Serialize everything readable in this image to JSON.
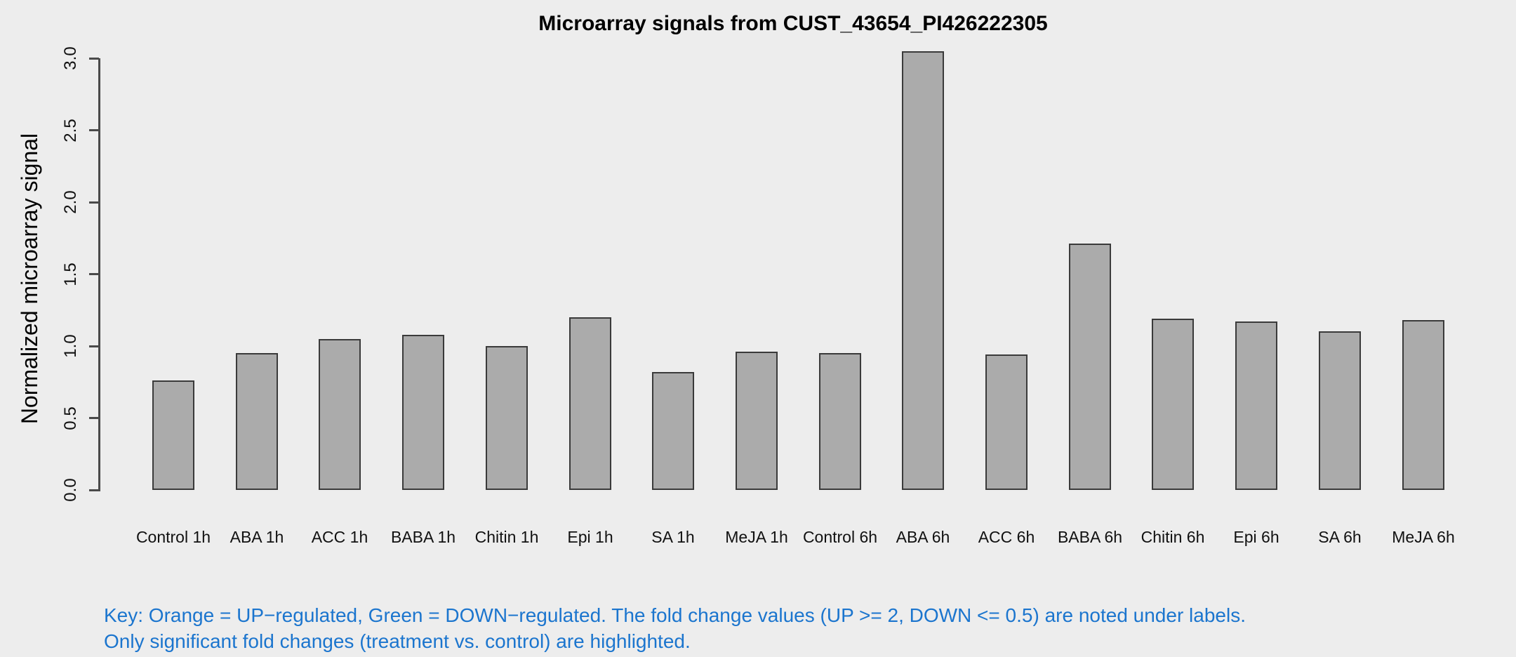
{
  "chart_data": {
    "type": "bar",
    "title": "Microarray signals from CUST_43654_PI426222305",
    "ylabel": "Normalized microarray signal",
    "xlabel": "",
    "ylim": [
      0.0,
      3.0
    ],
    "yticks": [
      "0.0",
      "0.5",
      "1.0",
      "1.5",
      "2.0",
      "2.5",
      "3.0"
    ],
    "grid": false,
    "legend": "none",
    "categories": [
      "Control 1h",
      "ABA 1h",
      "ACC 1h",
      "BABA 1h",
      "Chitin 1h",
      "Epi 1h",
      "SA 1h",
      "MeJA 1h",
      "Control 6h",
      "ABA 6h",
      "ACC 6h",
      "BABA 6h",
      "Chitin 6h",
      "Epi 6h",
      "SA 6h",
      "MeJA 6h"
    ],
    "values": [
      0.76,
      0.95,
      1.05,
      1.08,
      1.0,
      1.2,
      0.82,
      0.96,
      0.95,
      3.05,
      0.94,
      1.71,
      1.19,
      1.17,
      1.1,
      1.18
    ],
    "bar_fill_color": "#ABABAB",
    "bar_border_color": "#3A3A3A"
  },
  "footnote": {
    "line1": "Key: Orange = UP−regulated, Green = DOWN−regulated. The fold change values (UP >= 2, DOWN <= 0.5) are noted under labels.",
    "line2": "Only significant fold changes (treatment vs. control) are highlighted.",
    "color": "#1B75CE"
  },
  "colors": {
    "background": "#EDEDED",
    "axis": "#4A4A4A",
    "text": "#111111"
  }
}
